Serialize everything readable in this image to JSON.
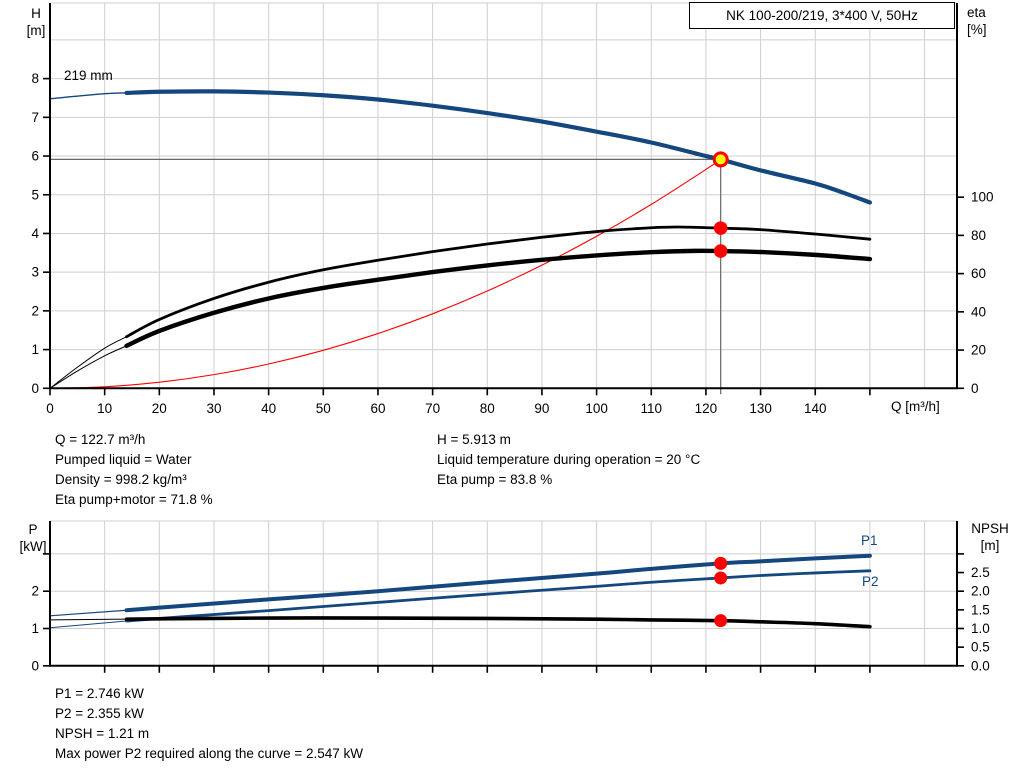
{
  "labels": {
    "h": "H",
    "h_unit": "[m]",
    "eta": "eta",
    "eta_unit": "[%]",
    "q": "Q [m³/h]",
    "p": "P",
    "p_unit": "[kW]",
    "npsh": "NPSH",
    "npsh_unit": "[m]"
  },
  "info_top": {
    "left": [
      "Q = 122.7 m³/h",
      "Pumped liquid = Water",
      "Density = 998.2 kg/m³",
      "Eta pump+motor = 71.8 %"
    ],
    "right": [
      "H = 5.913 m",
      "Liquid temperature during operation = 20 °C",
      "Eta pump = 83.8 %"
    ]
  },
  "info_bottom": [
    "P1 = 2.746 kW",
    "P2 = 2.355 kW",
    "NPSH = 1.21 m",
    "Max power P2 required along the curve = 2.547 kW"
  ],
  "chart_data": [
    {
      "type": "line",
      "name": "hq-eta-chart",
      "title": "NK 100-200/219, 3*400 V, 50Hz",
      "curve_label": "219 mm",
      "xlabel": "Q [m³/h]",
      "ylabel_left": "H [m]",
      "ylabel_right": "eta [%]",
      "xlim": [
        0,
        166
      ],
      "ylim_left": [
        0,
        9.96
      ],
      "ylim_right": [
        0,
        201.6
      ],
      "x_ticks": {
        "labeled": [
          0,
          10,
          20,
          30,
          40,
          50,
          60,
          70,
          80,
          90,
          100,
          110,
          120,
          130,
          140
        ],
        "unlabeled": [
          150
        ]
      },
      "y_ticks_left": [
        0,
        1,
        2,
        3,
        4,
        5,
        6,
        7,
        8
      ],
      "y_ticks_right": [
        0,
        20,
        40,
        60,
        80,
        100
      ],
      "grid": {
        "x": [
          10,
          20,
          30,
          40,
          50,
          60,
          70,
          80,
          90,
          100,
          110,
          120,
          130,
          140,
          150,
          160
        ],
        "y_left": [
          1,
          2,
          3,
          4,
          5,
          6,
          7,
          8,
          9
        ]
      },
      "crosshair": {
        "q": 122.7,
        "h": 5.913,
        "color": "#666666"
      },
      "series": [
        {
          "name": "system-curve",
          "axis": "left",
          "color": "#ff0000",
          "width": 1.1,
          "thin_width": 1.1,
          "thin_until": 0,
          "points": [
            [
              0,
              0
            ],
            [
              10,
              0.039
            ],
            [
              20,
              0.157
            ],
            [
              30,
              0.353
            ],
            [
              40,
              0.628
            ],
            [
              50,
              0.982
            ],
            [
              60,
              1.414
            ],
            [
              70,
              1.924
            ],
            [
              80,
              2.513
            ],
            [
              90,
              3.181
            ],
            [
              100,
              3.927
            ],
            [
              110,
              4.751
            ],
            [
              120,
              5.654
            ],
            [
              122.7,
              5.913
            ]
          ]
        },
        {
          "name": "eta-pump",
          "axis": "right",
          "color": "#000000",
          "width": 2.8,
          "thin_width": 1,
          "thin_until": 14,
          "points": [
            [
              0,
              0
            ],
            [
              5,
              11
            ],
            [
              10,
              21
            ],
            [
              14,
              27
            ],
            [
              20,
              36
            ],
            [
              30,
              47
            ],
            [
              40,
              55.5
            ],
            [
              50,
              62
            ],
            [
              60,
              67
            ],
            [
              70,
              71.5
            ],
            [
              80,
              75.5
            ],
            [
              90,
              79
            ],
            [
              100,
              82
            ],
            [
              110,
              84
            ],
            [
              115,
              84.4
            ],
            [
              122.7,
              83.8
            ],
            [
              130,
              83
            ],
            [
              140,
              80.7
            ],
            [
              150,
              78
            ]
          ]
        },
        {
          "name": "eta-pump-motor",
          "axis": "right",
          "color": "#000000",
          "width": 4.4,
          "thin_width": 1,
          "thin_until": 14,
          "points": [
            [
              0,
              0
            ],
            [
              5,
              9
            ],
            [
              10,
              17
            ],
            [
              14,
              22.2
            ],
            [
              20,
              30
            ],
            [
              30,
              39.5
            ],
            [
              40,
              47
            ],
            [
              50,
              52.5
            ],
            [
              60,
              56.8
            ],
            [
              70,
              60.8
            ],
            [
              80,
              64.3
            ],
            [
              90,
              67.2
            ],
            [
              100,
              69.5
            ],
            [
              110,
              71.2
            ],
            [
              118,
              71.9
            ],
            [
              122.7,
              71.8
            ],
            [
              130,
              71.3
            ],
            [
              140,
              69.8
            ],
            [
              150,
              67.6
            ]
          ]
        },
        {
          "name": "head-curve-219mm",
          "axis": "left",
          "color": "#14477e",
          "width": 4.2,
          "thin_width": 1.4,
          "thin_until": 14,
          "points": [
            [
              0,
              7.48
            ],
            [
              10,
              7.61
            ],
            [
              14,
              7.63
            ],
            [
              20,
              7.66
            ],
            [
              30,
              7.67
            ],
            [
              40,
              7.64
            ],
            [
              50,
              7.57
            ],
            [
              60,
              7.46
            ],
            [
              70,
              7.3
            ],
            [
              80,
              7.11
            ],
            [
              90,
              6.89
            ],
            [
              100,
              6.63
            ],
            [
              110,
              6.35
            ],
            [
              120,
              6.0
            ],
            [
              122.7,
              5.913
            ],
            [
              130,
              5.63
            ],
            [
              140,
              5.29
            ],
            [
              145,
              5.06
            ],
            [
              150,
              4.8
            ]
          ]
        }
      ],
      "markers": [
        {
          "name": "duty-point",
          "q": 122.7,
          "v": 5.913,
          "axis": "left",
          "r": 6.5,
          "fill": "#ffff00",
          "stroke": "#ff0000",
          "stroke_width": 3
        },
        {
          "name": "eta-pump-point",
          "q": 122.7,
          "v": 83.8,
          "axis": "right",
          "r": 6.8,
          "fill": "#ff0000"
        },
        {
          "name": "eta-pump-motor-point",
          "q": 122.7,
          "v": 71.8,
          "axis": "right",
          "r": 6.8,
          "fill": "#ff0000"
        }
      ]
    },
    {
      "type": "line",
      "name": "power-npsh-chart",
      "curve_labels": [
        "P1",
        "P2"
      ],
      "ylabel_left": "P [kW]",
      "ylabel_right": "NPSH [m]",
      "xlim": [
        0,
        166
      ],
      "ylim_left": [
        0,
        3.89
      ],
      "ylim_right": [
        0,
        3.89
      ],
      "x_ticks": {
        "labeled": [],
        "unlabeled": [
          10,
          20,
          30,
          40,
          50,
          60,
          70,
          80,
          90,
          100,
          110,
          120,
          130,
          140,
          150
        ]
      },
      "y_ticks_left": [
        0,
        1,
        2
      ],
      "y_ticks_left_unlabeled": [
        3
      ],
      "y_ticks_right": [
        {
          "v": 0,
          "label": "0.0"
        },
        {
          "v": 0.5,
          "label": "0.5"
        },
        {
          "v": 1,
          "label": "1.0"
        },
        {
          "v": 1.5,
          "label": "1.5"
        },
        {
          "v": 2,
          "label": "2.0"
        },
        {
          "v": 2.5,
          "label": "2.5"
        },
        {
          "v": 3,
          "label": ""
        }
      ],
      "grid": {
        "x": [
          10,
          20,
          30,
          40,
          50,
          60,
          70,
          80,
          90,
          100,
          110,
          120,
          130,
          140,
          150,
          160
        ],
        "y_left": [
          1,
          2,
          3
        ]
      },
      "series": [
        {
          "name": "p2-curve",
          "axis": "left",
          "color": "#14477e",
          "width": 2.8,
          "thin_width": 1,
          "thin_until": 14,
          "points": [
            [
              0,
              1.02
            ],
            [
              14,
              1.2
            ],
            [
              20,
              1.27
            ],
            [
              40,
              1.48
            ],
            [
              60,
              1.7
            ],
            [
              80,
              1.92
            ],
            [
              100,
              2.13
            ],
            [
              110,
              2.24
            ],
            [
              122.7,
              2.355
            ],
            [
              130,
              2.42
            ],
            [
              140,
              2.49
            ],
            [
              150,
              2.547
            ]
          ]
        },
        {
          "name": "p1-curve",
          "axis": "left",
          "color": "#14477e",
          "width": 4,
          "thin_width": 1.2,
          "thin_until": 14,
          "points": [
            [
              0,
              1.34
            ],
            [
              14,
              1.49
            ],
            [
              20,
              1.56
            ],
            [
              40,
              1.78
            ],
            [
              60,
              2.0
            ],
            [
              80,
              2.24
            ],
            [
              100,
              2.47
            ],
            [
              110,
              2.6
            ],
            [
              122.7,
              2.746
            ],
            [
              130,
              2.8
            ],
            [
              140,
              2.88
            ],
            [
              150,
              2.95
            ]
          ]
        },
        {
          "name": "npsh-curve",
          "axis": "right",
          "color": "#000000",
          "width": 3.6,
          "thin_width": 1,
          "thin_until": 14,
          "points": [
            [
              0,
              1.23
            ],
            [
              14,
              1.25
            ],
            [
              20,
              1.26
            ],
            [
              40,
              1.28
            ],
            [
              60,
              1.28
            ],
            [
              80,
              1.27
            ],
            [
              100,
              1.25
            ],
            [
              110,
              1.23
            ],
            [
              122.7,
              1.21
            ],
            [
              130,
              1.18
            ],
            [
              140,
              1.13
            ],
            [
              150,
              1.05
            ]
          ]
        }
      ],
      "markers": [
        {
          "name": "p1-point",
          "q": 122.7,
          "v": 2.746,
          "axis": "left",
          "r": 6.5,
          "fill": "#ff0000"
        },
        {
          "name": "p2-point",
          "q": 122.7,
          "v": 2.355,
          "axis": "left",
          "r": 6.5,
          "fill": "#ff0000"
        },
        {
          "name": "npsh-point",
          "q": 122.7,
          "v": 1.21,
          "axis": "right",
          "r": 6.5,
          "fill": "#ff0000"
        }
      ]
    }
  ]
}
